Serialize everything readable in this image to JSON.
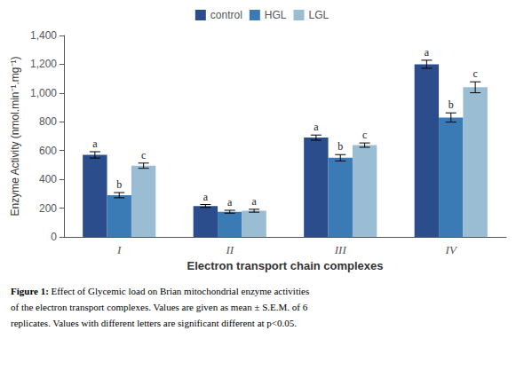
{
  "chart_data": {
    "type": "bar",
    "categories": [
      "I",
      "II",
      "III",
      "IV"
    ],
    "series": [
      {
        "name": "control",
        "color": "#2b4d8c",
        "values": [
          570,
          215,
          690,
          1200
        ],
        "errors": [
          22,
          10,
          18,
          28
        ],
        "letters": [
          "a",
          "a",
          "a",
          "a"
        ]
      },
      {
        "name": "HGL",
        "color": "#3a7ab5",
        "values": [
          290,
          175,
          550,
          830
        ],
        "errors": [
          18,
          10,
          22,
          32
        ],
        "letters": [
          "b",
          "a",
          "b",
          "b"
        ]
      },
      {
        "name": "LGL",
        "color": "#9bbdd4",
        "values": [
          495,
          182,
          638,
          1040
        ],
        "errors": [
          18,
          10,
          15,
          38
        ],
        "letters": [
          "c",
          "a",
          "c",
          "c"
        ]
      }
    ],
    "xlabel": "Electron transport chain complexes",
    "ylabel": "Enzyme Activity (nmol.min⁻¹.mg⁻¹)",
    "ylim": [
      0,
      1400
    ],
    "yticks": [
      0,
      200,
      400,
      600,
      800,
      1000,
      1200,
      1400
    ],
    "grid": false,
    "legend": "top",
    "caption_label": "Figure 1:",
    "caption": [
      "Effect of Glycemic load on Brian mitochondrial enzyme activities",
      "of the electron transport complexes. Values are given as mean ± S.E.M. of 6",
      "replicates. Values with different letters are significant different at p<0.05."
    ]
  }
}
